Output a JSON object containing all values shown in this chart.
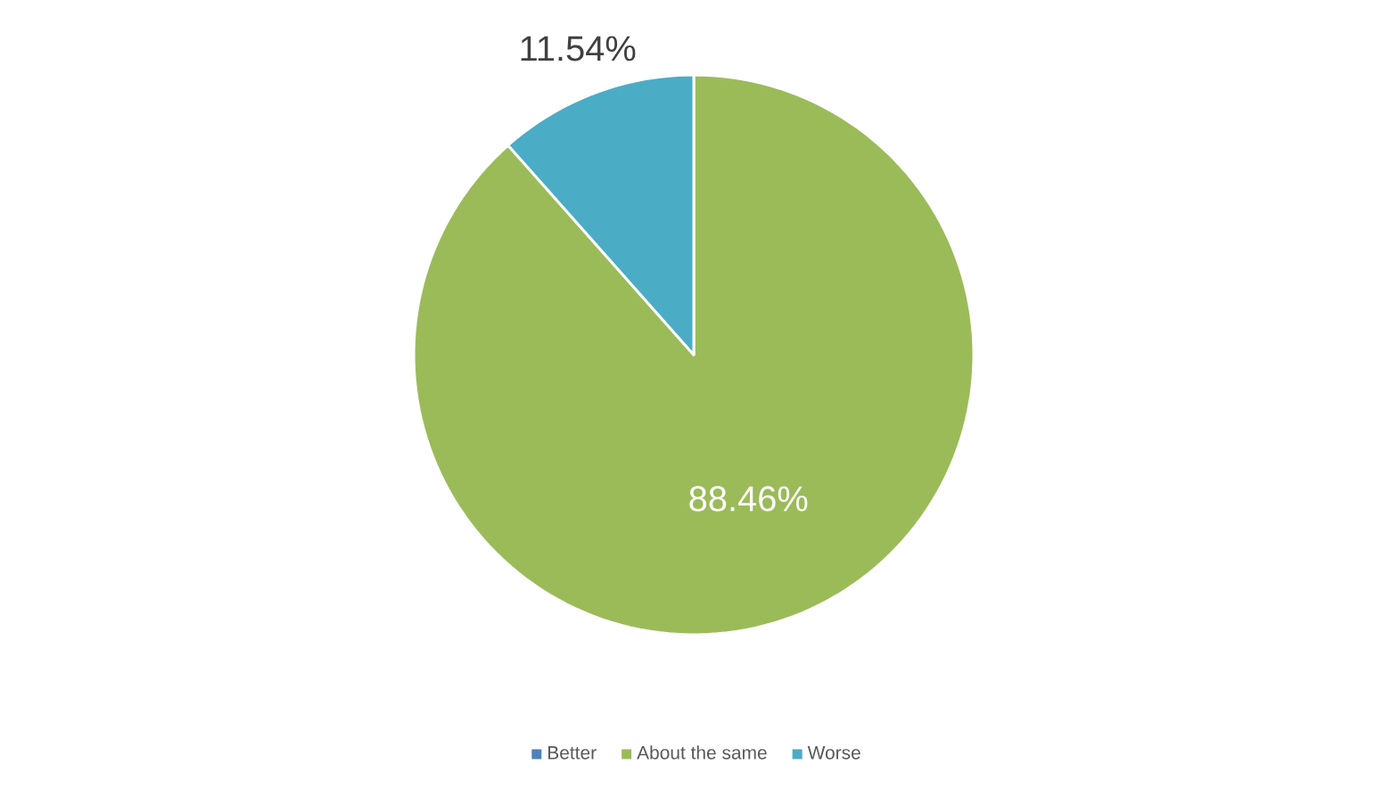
{
  "chart_data": {
    "type": "pie",
    "categories": [
      "Better",
      "About the same",
      "Worse"
    ],
    "values": [
      0,
      88.46,
      11.54
    ],
    "colors": [
      "#4f81bd",
      "#9bbb59",
      "#4bacc6"
    ],
    "value_labels": [
      null,
      "88.46%",
      "11.54%"
    ],
    "legend": "bottom"
  }
}
